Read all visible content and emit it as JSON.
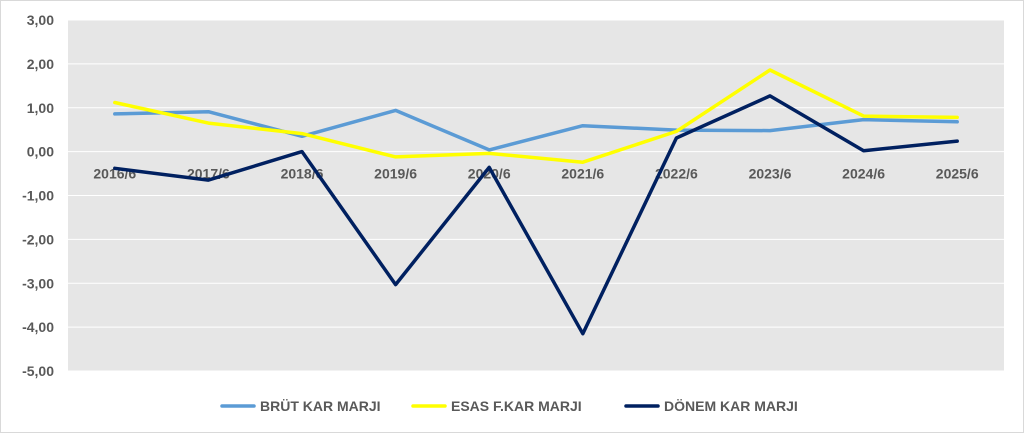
{
  "chart_data": {
    "type": "line",
    "categories": [
      "2016/6",
      "2017/6",
      "2018/6",
      "2019/6",
      "2020/6",
      "2021/6",
      "2022/6",
      "2023/6",
      "2024/6",
      "2025/6"
    ],
    "ylim": [
      -5,
      3
    ],
    "yticks": [
      "3,00",
      "2,00",
      "1,00",
      "0,00",
      "-1,00",
      "-2,00",
      "-3,00",
      "-4,00",
      "-5,00"
    ],
    "grid": true,
    "legend_position": "bottom",
    "series": [
      {
        "name": "BRÜT KAR MARJI",
        "color": "#5b9bd5",
        "values": [
          0.86,
          0.91,
          0.35,
          0.94,
          0.04,
          0.59,
          0.49,
          0.48,
          0.73,
          0.68
        ]
      },
      {
        "name": "ESAS F.KAR MARJI",
        "color": "#ffff00",
        "values": [
          1.12,
          0.65,
          0.41,
          -0.12,
          -0.04,
          -0.24,
          0.46,
          1.86,
          0.81,
          0.78
        ]
      },
      {
        "name": "DÖNEM KAR MARJI",
        "color": "#002060",
        "values": [
          -0.38,
          -0.65,
          0.0,
          -3.03,
          -0.36,
          -4.15,
          0.31,
          1.27,
          0.02,
          0.24
        ]
      }
    ]
  }
}
